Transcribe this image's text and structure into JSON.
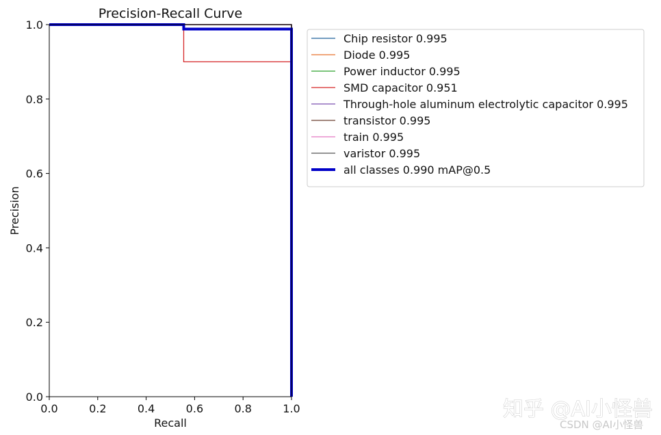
{
  "chart_data": {
    "type": "line",
    "title": "Precision-Recall Curve",
    "xlabel": "Recall",
    "ylabel": "Precision",
    "xlim": [
      0,
      1
    ],
    "ylim": [
      0,
      1
    ],
    "xticks": [
      "0.0",
      "0.2",
      "0.4",
      "0.6",
      "0.8",
      "1.0"
    ],
    "yticks": [
      "0.0",
      "0.2",
      "0.4",
      "0.6",
      "0.8",
      "1.0"
    ],
    "grid": false,
    "legend_position": "outside-right-top",
    "series": [
      {
        "name": "Chip resistor 0.995",
        "color": "#1f5f9a",
        "width": "thin",
        "x": [
          0,
          1,
          1
        ],
        "y": [
          1,
          1,
          0
        ]
      },
      {
        "name": "Diode 0.995",
        "color": "#e8702a",
        "width": "thin",
        "x": [
          0,
          1,
          1
        ],
        "y": [
          1,
          1,
          0
        ]
      },
      {
        "name": "Power inductor 0.995",
        "color": "#2ca02c",
        "width": "thin",
        "x": [
          0,
          1,
          1
        ],
        "y": [
          1,
          1,
          0
        ]
      },
      {
        "name": "SMD capacitor 0.951",
        "color": "#d62728",
        "width": "thin",
        "x": [
          0,
          0.555,
          0.555,
          1,
          1
        ],
        "y": [
          1,
          1,
          0.9,
          0.9,
          0
        ]
      },
      {
        "name": "Through-hole aluminum electrolytic capacitor 0.995",
        "color": "#7b4fb0",
        "width": "thin",
        "x": [
          0,
          1,
          1
        ],
        "y": [
          1,
          1,
          0
        ]
      },
      {
        "name": "transistor 0.995",
        "color": "#6b3d2e",
        "width": "thin",
        "x": [
          0,
          1,
          1
        ],
        "y": [
          1,
          1,
          0
        ]
      },
      {
        "name": "train 0.995",
        "color": "#e377c2",
        "width": "thin",
        "x": [
          0,
          1,
          1
        ],
        "y": [
          1,
          1,
          0
        ]
      },
      {
        "name": "varistor 0.995",
        "color": "#555555",
        "width": "thin",
        "x": [
          0,
          1,
          1
        ],
        "y": [
          1,
          1,
          0
        ]
      },
      {
        "name": "all classes 0.990 mAP@0.5",
        "color": "#0000c8",
        "width": "thick",
        "x": [
          0,
          0.555,
          0.555,
          1,
          1
        ],
        "y": [
          1,
          1,
          0.988,
          0.988,
          0
        ]
      }
    ]
  },
  "watermark": {
    "main": "知乎 @AI小怪兽",
    "sub": "CSDN @AI小怪兽"
  }
}
